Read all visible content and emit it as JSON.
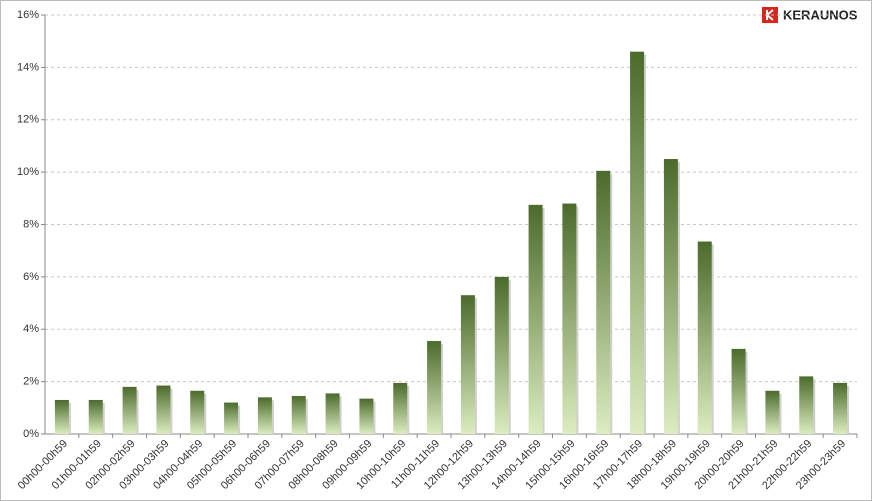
{
  "chart_data": {
    "type": "bar",
    "brand": "KERAUNOS",
    "categories": [
      "00h00-00h59",
      "01h00-01h59",
      "02h00-02h59",
      "03h00-03h59",
      "04h00-04h59",
      "05h00-05h59",
      "06h00-06h59",
      "07h00-07h59",
      "08h00-08h59",
      "09h00-09h59",
      "10h00-10h59",
      "11h00-11h59",
      "12h00-12h59",
      "13h00-13h59",
      "14h00-14h59",
      "15h00-15h59",
      "16h00-16h59",
      "17h00-17h59",
      "18h00-18h59",
      "19h00-19h59",
      "20h00-20h59",
      "21h00-21h59",
      "22h00-22h59",
      "23h00-23h59"
    ],
    "values": [
      1.3,
      1.3,
      1.8,
      1.85,
      1.65,
      1.2,
      1.4,
      1.45,
      1.55,
      1.35,
      1.95,
      3.55,
      5.3,
      6.0,
      8.75,
      8.8,
      10.05,
      14.6,
      10.5,
      7.35,
      3.25,
      1.65,
      2.2,
      1.95
    ],
    "color_top": "#4b6b2b",
    "color_bottom": "#dcedc0",
    "ylim": [
      0,
      16
    ],
    "yticks": [
      {
        "value": 0,
        "label": "0%"
      },
      {
        "value": 2,
        "label": "2%"
      },
      {
        "value": 4,
        "label": "4%"
      },
      {
        "value": 6,
        "label": "6%"
      },
      {
        "value": 8,
        "label": "8%"
      },
      {
        "value": 10,
        "label": "10%"
      },
      {
        "value": 12,
        "label": "12%"
      },
      {
        "value": 14,
        "label": "14%"
      },
      {
        "value": 16,
        "label": "16%"
      }
    ],
    "grid": true
  }
}
